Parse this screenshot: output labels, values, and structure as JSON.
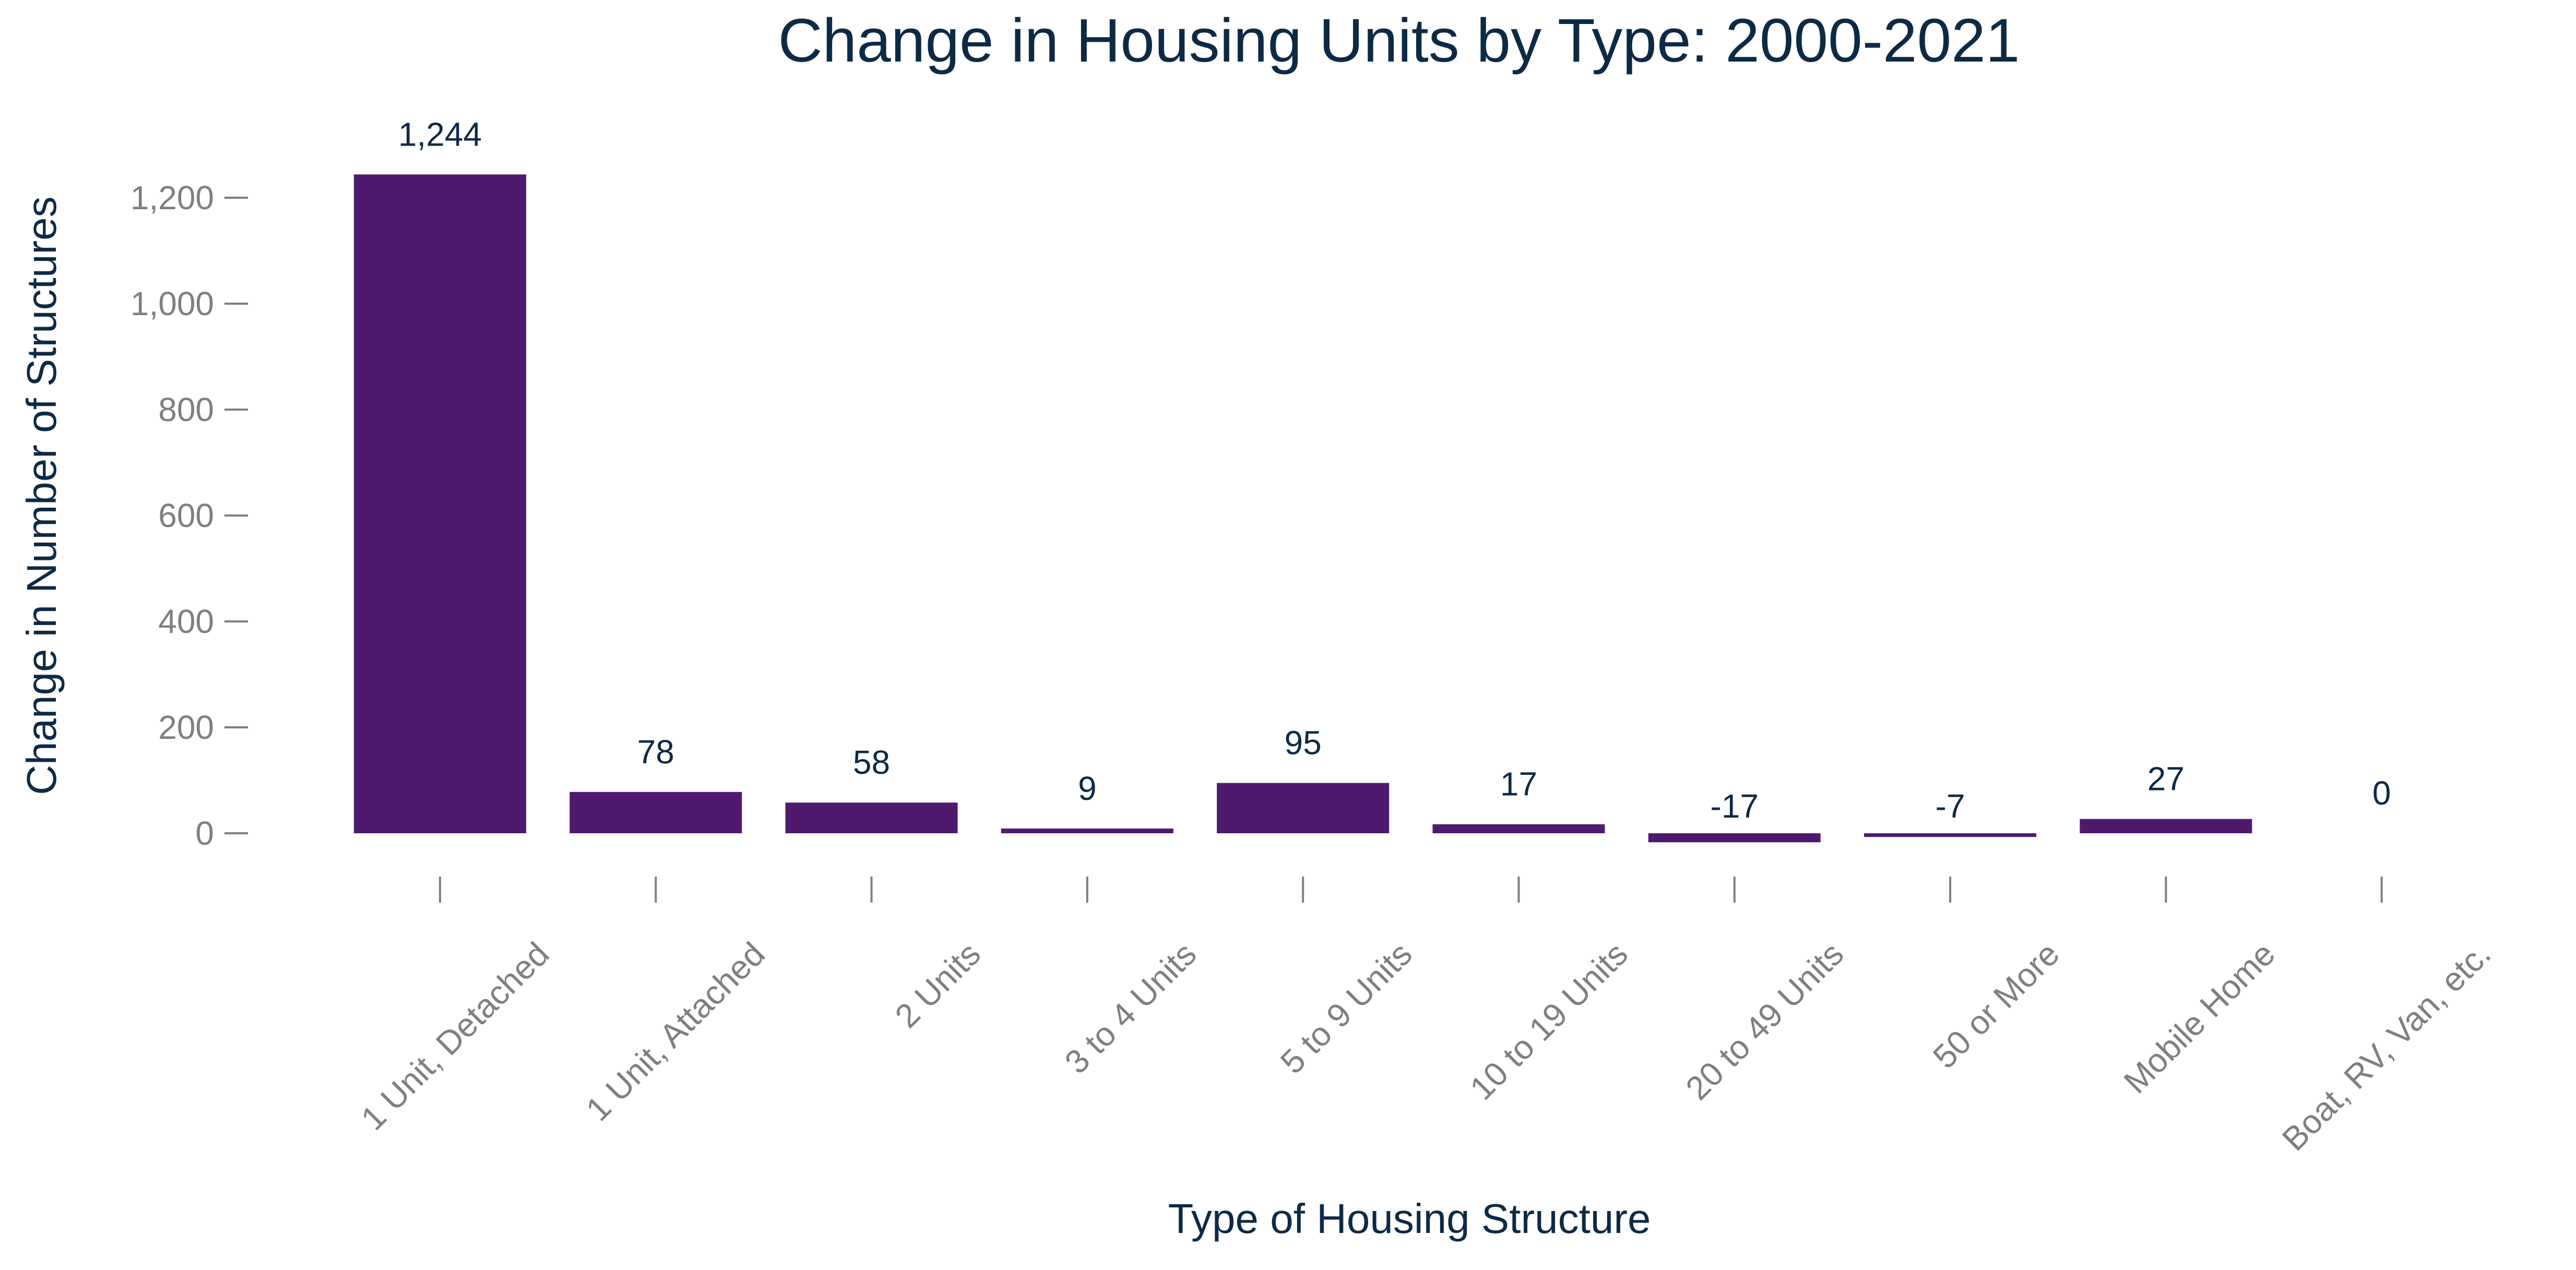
{
  "chart_data": {
    "type": "bar",
    "title": "Change in Housing Units by Type: 2000-2021",
    "xlabel": "Type of Housing Structure",
    "ylabel": "Change in Number of Structures",
    "categories": [
      "1 Unit, Detached",
      "1 Unit, Attached",
      "2 Units",
      "3 to 4 Units",
      "5 to 9 Units",
      "10 to 19 Units",
      "20 to 49 Units",
      "50 or More",
      "Mobile Home",
      "Boat, RV, Van, etc."
    ],
    "values": [
      1244,
      78,
      58,
      9,
      95,
      17,
      -17,
      -7,
      27,
      0
    ],
    "data_labels": [
      "1,244",
      "78",
      "58",
      "9",
      "95",
      "17",
      "-17",
      "-7",
      "27",
      "0"
    ],
    "y_ticks": [
      0,
      200,
      400,
      600,
      800,
      1000,
      1200
    ],
    "y_tick_labels": [
      "0",
      "200",
      "400",
      "600",
      "800",
      "1,000",
      "1,200"
    ],
    "ylim": [
      -75,
      1300
    ],
    "grid": false,
    "legend": "none",
    "bar_color": "#4f1a6e",
    "tick_color": "#7f7f7f",
    "label_color": "#0d2a45"
  }
}
